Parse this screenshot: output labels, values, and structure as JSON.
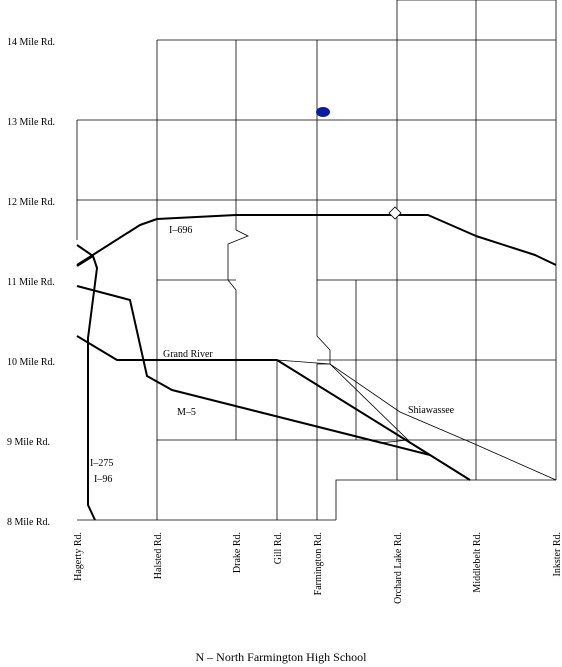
{
  "map": {
    "horizontal_roads": [
      "14 Mile Rd.",
      "13 Mile Rd.",
      "12 Mile Rd.",
      "11 Mile Rd.",
      "10 Mile Rd.",
      "9 Mile Rd.",
      "8 Mile Rd."
    ],
    "vertical_roads": [
      "Hagerty Rd.",
      "Halsted Rd.",
      "Drake Rd.",
      "Gill Rd.",
      "Farmington Rd.",
      "Orchard Lake Rd.",
      "Middlebelt Rd.",
      "Inkster Rd."
    ],
    "highways": {
      "i696": "I–696",
      "grand_river": "Grand River",
      "m5": "M–5",
      "shiawassee": "Shiawassee",
      "i275": "I–275",
      "i96": "I–96"
    },
    "colors": {
      "school_marker": "#0a1a9e",
      "lines": "#000000",
      "background": "#ffffff"
    }
  },
  "caption": "N – North Farmington High School"
}
